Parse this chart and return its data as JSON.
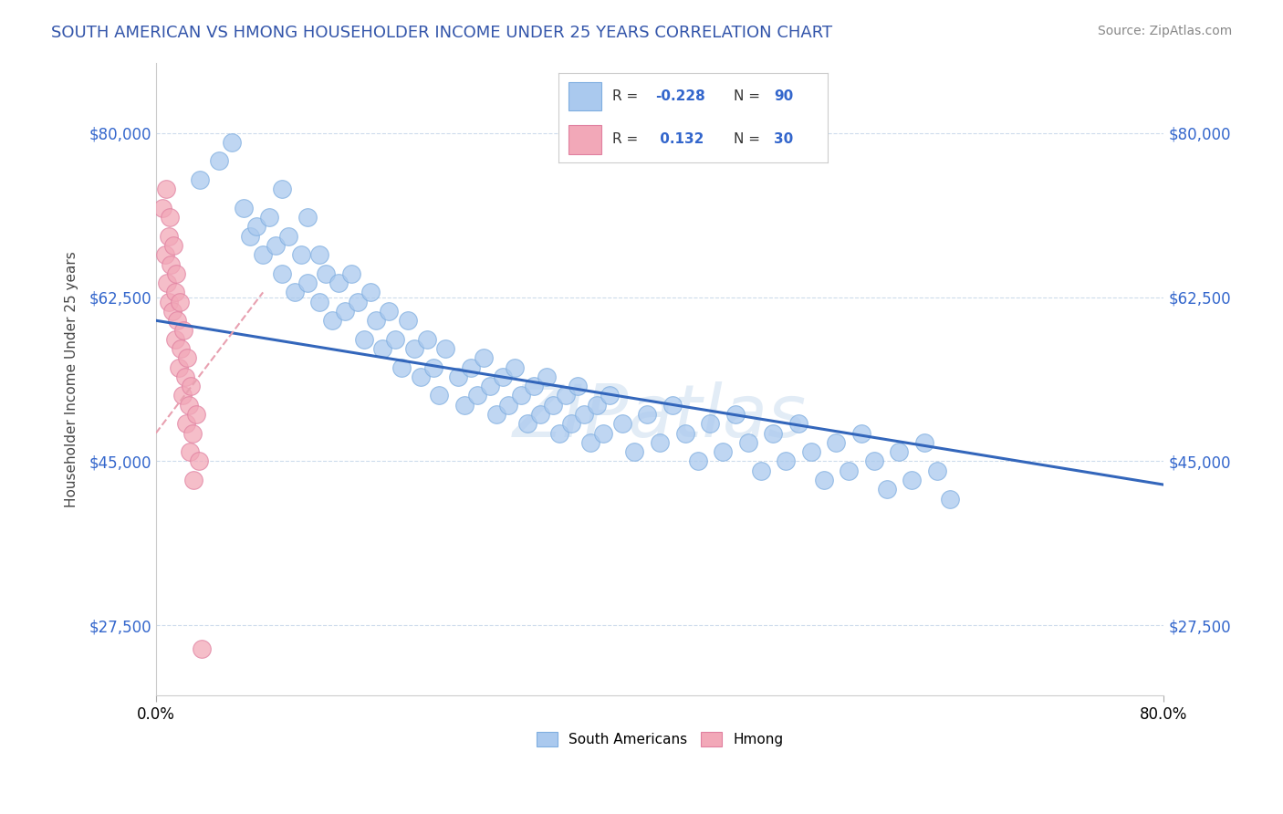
{
  "title": "SOUTH AMERICAN VS HMONG HOUSEHOLDER INCOME UNDER 25 YEARS CORRELATION CHART",
  "source": "Source: ZipAtlas.com",
  "ylabel": "Householder Income Under 25 years",
  "xlim": [
    0.0,
    0.8
  ],
  "ylim": [
    20000,
    87500
  ],
  "yticks": [
    27500,
    45000,
    62500,
    80000
  ],
  "ytick_labels": [
    "$27,500",
    "$45,000",
    "$62,500",
    "$80,000"
  ],
  "watermark": "ZIPatlas",
  "blue_color": "#aac9ee",
  "pink_color": "#f2a8b8",
  "line_blue": "#3366bb",
  "line_pink_dash": "#e8a0b0",
  "sa_line_x": [
    0.0,
    0.8
  ],
  "sa_line_y": [
    60000,
    42500
  ],
  "hmong_line_x": [
    0.0,
    0.085
  ],
  "hmong_line_y": [
    48000,
    63000
  ],
  "sa_x": [
    0.035,
    0.05,
    0.06,
    0.07,
    0.075,
    0.08,
    0.085,
    0.09,
    0.095,
    0.1,
    0.1,
    0.105,
    0.11,
    0.115,
    0.12,
    0.12,
    0.13,
    0.13,
    0.135,
    0.14,
    0.145,
    0.15,
    0.155,
    0.16,
    0.165,
    0.17,
    0.175,
    0.18,
    0.185,
    0.19,
    0.195,
    0.2,
    0.205,
    0.21,
    0.215,
    0.22,
    0.225,
    0.23,
    0.24,
    0.245,
    0.25,
    0.255,
    0.26,
    0.265,
    0.27,
    0.275,
    0.28,
    0.285,
    0.29,
    0.295,
    0.3,
    0.305,
    0.31,
    0.315,
    0.32,
    0.325,
    0.33,
    0.335,
    0.34,
    0.345,
    0.35,
    0.355,
    0.36,
    0.37,
    0.38,
    0.39,
    0.4,
    0.41,
    0.42,
    0.43,
    0.44,
    0.45,
    0.46,
    0.47,
    0.48,
    0.49,
    0.5,
    0.51,
    0.52,
    0.53,
    0.54,
    0.55,
    0.56,
    0.57,
    0.58,
    0.59,
    0.6,
    0.61,
    0.62,
    0.63
  ],
  "sa_y": [
    75000,
    77000,
    79000,
    72000,
    69000,
    70000,
    67000,
    71000,
    68000,
    74000,
    65000,
    69000,
    63000,
    67000,
    71000,
    64000,
    67000,
    62000,
    65000,
    60000,
    64000,
    61000,
    65000,
    62000,
    58000,
    63000,
    60000,
    57000,
    61000,
    58000,
    55000,
    60000,
    57000,
    54000,
    58000,
    55000,
    52000,
    57000,
    54000,
    51000,
    55000,
    52000,
    56000,
    53000,
    50000,
    54000,
    51000,
    55000,
    52000,
    49000,
    53000,
    50000,
    54000,
    51000,
    48000,
    52000,
    49000,
    53000,
    50000,
    47000,
    51000,
    48000,
    52000,
    49000,
    46000,
    50000,
    47000,
    51000,
    48000,
    45000,
    49000,
    46000,
    50000,
    47000,
    44000,
    48000,
    45000,
    49000,
    46000,
    43000,
    47000,
    44000,
    48000,
    45000,
    42000,
    46000,
    43000,
    47000,
    44000,
    41000
  ],
  "hmong_x": [
    0.005,
    0.007,
    0.008,
    0.009,
    0.01,
    0.01,
    0.011,
    0.012,
    0.013,
    0.014,
    0.015,
    0.015,
    0.016,
    0.017,
    0.018,
    0.019,
    0.02,
    0.021,
    0.022,
    0.023,
    0.024,
    0.025,
    0.026,
    0.027,
    0.028,
    0.029,
    0.03,
    0.032,
    0.034,
    0.036
  ],
  "hmong_y": [
    72000,
    67000,
    74000,
    64000,
    69000,
    62000,
    71000,
    66000,
    61000,
    68000,
    63000,
    58000,
    65000,
    60000,
    55000,
    62000,
    57000,
    52000,
    59000,
    54000,
    49000,
    56000,
    51000,
    46000,
    53000,
    48000,
    43000,
    50000,
    45000,
    25000
  ]
}
